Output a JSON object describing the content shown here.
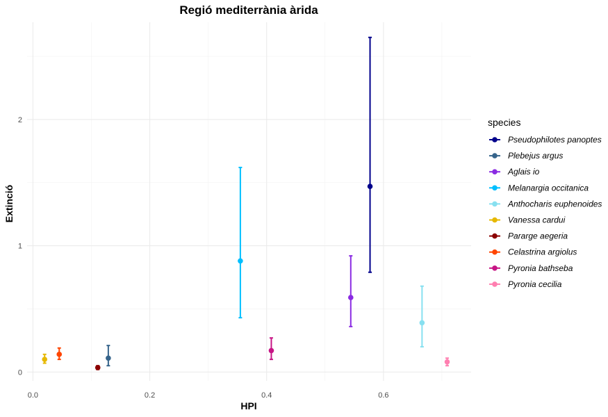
{
  "chart_data": {
    "type": "scatter",
    "title": "Regió mediterrània àrida",
    "xlabel": "HPI",
    "ylabel": "Extinció",
    "xlim": [
      -0.01,
      0.75
    ],
    "ylim": [
      -0.07,
      2.77
    ],
    "x_ticks": [
      0.0,
      0.2,
      0.4,
      0.6
    ],
    "x_tick_labels": [
      "0.0",
      "0.2",
      "0.4",
      "0.6"
    ],
    "y_ticks": [
      0,
      1,
      2
    ],
    "y_tick_labels": [
      "0",
      "1",
      "2"
    ],
    "grid": true,
    "legend_title": "species",
    "legend_position": "right",
    "series": [
      {
        "name": "Pseudophilotes panoptes",
        "color": "#00008B",
        "x": 0.577,
        "y": 1.47,
        "lower": 0.79,
        "upper": 2.65
      },
      {
        "name": "Plebejus argus",
        "color": "#36648B",
        "x": 0.129,
        "y": 0.11,
        "lower": 0.05,
        "upper": 0.21
      },
      {
        "name": "Aglais io",
        "color": "#8A2BE2",
        "x": 0.544,
        "y": 0.59,
        "lower": 0.36,
        "upper": 0.92
      },
      {
        "name": "Melanargia occitanica",
        "color": "#00BFFF",
        "x": 0.355,
        "y": 0.88,
        "lower": 0.43,
        "upper": 1.62
      },
      {
        "name": "Anthocharis euphenoides",
        "color": "#87E0F0",
        "x": 0.666,
        "y": 0.39,
        "lower": 0.2,
        "upper": 0.68
      },
      {
        "name": "Vanessa cardui",
        "color": "#E6B800",
        "x": 0.02,
        "y": 0.1,
        "lower": 0.07,
        "upper": 0.14
      },
      {
        "name": "Pararge aegeria",
        "color": "#8B0000",
        "x": 0.111,
        "y": 0.035,
        "lower": 0.02,
        "upper": 0.05
      },
      {
        "name": "Celastrina argiolus",
        "color": "#FF4500",
        "x": 0.045,
        "y": 0.14,
        "lower": 0.1,
        "upper": 0.19
      },
      {
        "name": "Pyronia bathseba",
        "color": "#C71585",
        "x": 0.408,
        "y": 0.17,
        "lower": 0.1,
        "upper": 0.27
      },
      {
        "name": "Pyronia cecilia",
        "color": "#FF7FB0",
        "x": 0.709,
        "y": 0.08,
        "lower": 0.05,
        "upper": 0.11
      }
    ]
  }
}
